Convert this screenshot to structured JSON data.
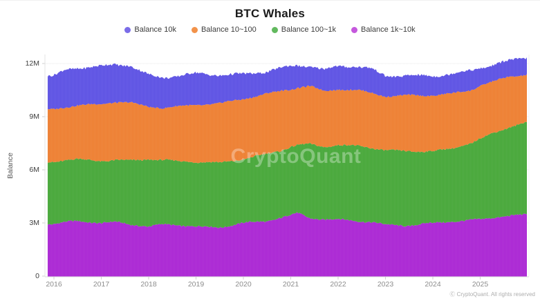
{
  "header": {
    "title": "BTC Whales"
  },
  "legend": [
    {
      "label": "Balance 10k",
      "dot_color": "#7a6ce8"
    },
    {
      "label": "Balance 10~100",
      "dot_color": "#f2924a"
    },
    {
      "label": "Balance 100~1k",
      "dot_color": "#62b95e"
    },
    {
      "label": "Balance 1k~10k",
      "dot_color": "#c558dd"
    }
  ],
  "watermark": "CryptoQuant",
  "footer": {
    "copyright": "Ⓒ CryptoQuant. All rights reserved"
  },
  "chart_data": {
    "type": "area",
    "stacked": true,
    "stack_order": "bottom-to-top",
    "title": "BTC Whales",
    "xlabel": "",
    "ylabel": "Balance",
    "grid": true,
    "legend_position": "top",
    "ylim": [
      0,
      12.8
    ],
    "yticks": [
      {
        "value": 0,
        "label": "0"
      },
      {
        "value": 3,
        "label": "3M"
      },
      {
        "value": 6,
        "label": "6M"
      },
      {
        "value": 9,
        "label": "9M"
      },
      {
        "value": 12,
        "label": "12M"
      }
    ],
    "xticks": [
      2016,
      2017,
      2018,
      2019,
      2020,
      2021,
      2022,
      2023,
      2024,
      2025
    ],
    "x_range": [
      2015.87,
      2025.99
    ],
    "values_unit": "millions of BTC (read from 0–12M axis)",
    "x": [
      2016.0,
      2016.25,
      2016.5,
      2017.0,
      2017.3,
      2017.6,
      2018.0,
      2018.3,
      2018.6,
      2019.0,
      2019.5,
      2020.0,
      2020.5,
      2020.8,
      2021.0,
      2021.15,
      2021.4,
      2021.7,
      2022.0,
      2022.4,
      2022.7,
      2023.0,
      2023.5,
      2024.0,
      2024.4,
      2024.8,
      2025.0,
      2025.3,
      2025.6,
      2025.99
    ],
    "series": [
      {
        "name": "Balance 1k~10k",
        "color": "#a922d3",
        "values": [
          2.95,
          3.05,
          3.1,
          3.0,
          3.05,
          2.92,
          2.8,
          2.92,
          2.88,
          2.8,
          2.75,
          3.0,
          3.1,
          3.3,
          3.45,
          3.55,
          3.28,
          3.2,
          3.2,
          3.12,
          3.05,
          2.9,
          2.85,
          3.0,
          3.08,
          3.15,
          3.2,
          3.32,
          3.4,
          3.47
        ]
      },
      {
        "name": "Balance 100~1k",
        "color": "#44a636",
        "values": [
          3.5,
          3.5,
          3.5,
          3.5,
          3.5,
          3.6,
          3.8,
          3.63,
          3.62,
          3.65,
          3.65,
          3.6,
          3.8,
          3.8,
          3.85,
          3.85,
          4.17,
          4.1,
          4.2,
          4.23,
          4.2,
          4.2,
          4.2,
          4.05,
          4.12,
          4.35,
          4.55,
          4.78,
          5.0,
          5.23
        ]
      },
      {
        "name": "Balance 10~100",
        "color": "#ed7d2e",
        "values": [
          2.95,
          3.0,
          3.05,
          3.2,
          3.28,
          3.28,
          2.95,
          2.95,
          3.08,
          3.2,
          3.35,
          3.4,
          3.4,
          3.35,
          3.25,
          3.25,
          3.27,
          3.15,
          3.15,
          3.15,
          3.1,
          3.05,
          3.15,
          3.15,
          3.1,
          3.0,
          3.0,
          2.9,
          2.85,
          2.68
        ]
      },
      {
        "name": "Balance 10k",
        "color": "#5a4fe3",
        "values": [
          1.9,
          2.1,
          2.1,
          2.15,
          2.12,
          2.1,
          1.8,
          1.7,
          1.72,
          1.8,
          1.6,
          1.4,
          1.25,
          1.3,
          1.3,
          1.25,
          1.13,
          1.2,
          1.3,
          1.35,
          1.35,
          1.15,
          1.12,
          1.1,
          1.12,
          1.1,
          1.0,
          0.95,
          0.9,
          0.97
        ]
      }
    ]
  }
}
